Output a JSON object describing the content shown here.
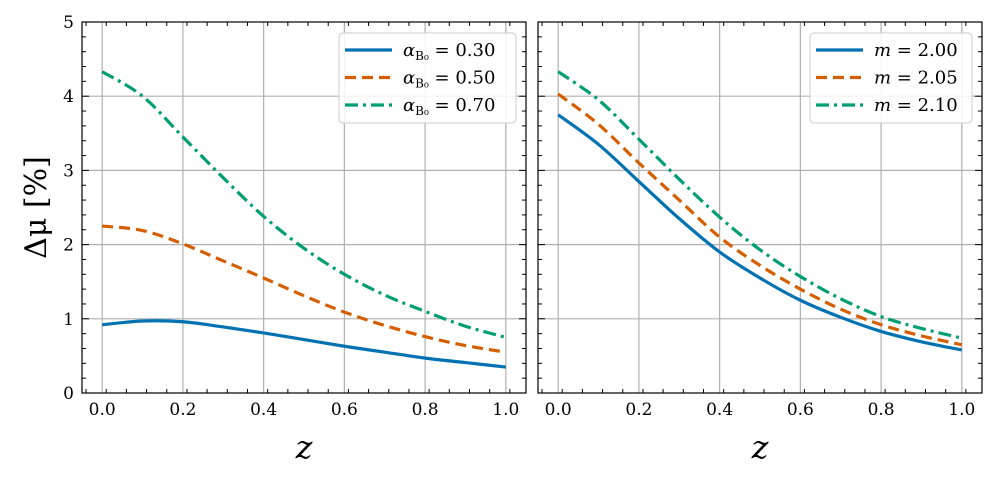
{
  "chart_data": [
    {
      "type": "line",
      "xlabel": "z",
      "ylabel": "Δμ [%]",
      "xlim": [
        -0.05,
        1.05
      ],
      "ylim": [
        0,
        5
      ],
      "xticks": [
        "0.0",
        "0.2",
        "0.4",
        "0.6",
        "0.8",
        "1.0"
      ],
      "yticks": [
        "0",
        "1",
        "2",
        "3",
        "4",
        "5"
      ],
      "grid": true,
      "legend": "top-right",
      "x": [
        0,
        0.1,
        0.2,
        0.3,
        0.4,
        0.5,
        0.6,
        0.7,
        0.8,
        0.9,
        1.0
      ],
      "series": [
        {
          "name": "α_B0 = 0.30",
          "label_var": "α",
          "label_sub": "B₀",
          "label_val": "= 0.30",
          "color": "#0072B2",
          "style": "solid",
          "values": [
            0.92,
            0.97,
            0.96,
            0.89,
            0.81,
            0.72,
            0.63,
            0.55,
            0.47,
            0.41,
            0.35
          ]
        },
        {
          "name": "α_B0 = 0.50",
          "label_var": "α",
          "label_sub": "B₀",
          "label_val": "= 0.50",
          "color": "#D55E00",
          "style": "dashed",
          "values": [
            2.25,
            2.19,
            2.01,
            1.78,
            1.55,
            1.31,
            1.09,
            0.91,
            0.76,
            0.64,
            0.55
          ]
        },
        {
          "name": "α_B0 = 0.70",
          "label_var": "α",
          "label_sub": "B₀",
          "label_val": "= 0.70",
          "color": "#009E73",
          "style": "dashdot",
          "values": [
            4.33,
            4.0,
            3.45,
            2.9,
            2.38,
            1.95,
            1.6,
            1.32,
            1.1,
            0.9,
            0.75
          ]
        }
      ]
    },
    {
      "type": "line",
      "xlabel": "z",
      "ylabel": "",
      "xlim": [
        -0.05,
        1.05
      ],
      "ylim": [
        0,
        5
      ],
      "xticks": [
        "0.0",
        "0.2",
        "0.4",
        "0.6",
        "0.8",
        "1.0"
      ],
      "yticks": [],
      "grid": true,
      "legend": "top-right",
      "x": [
        0,
        0.1,
        0.2,
        0.3,
        0.4,
        0.5,
        0.6,
        0.7,
        0.8,
        0.9,
        1.0
      ],
      "series": [
        {
          "name": "m = 2.00",
          "label_var": "m",
          "label_sub": "",
          "label_val": "= 2.00",
          "color": "#0072B2",
          "style": "solid",
          "values": [
            3.75,
            3.35,
            2.85,
            2.35,
            1.9,
            1.55,
            1.25,
            1.02,
            0.83,
            0.69,
            0.58
          ]
        },
        {
          "name": "m = 2.05",
          "label_var": "m",
          "label_sub": "",
          "label_val": "= 2.05",
          "color": "#D55E00",
          "style": "dashed",
          "values": [
            4.03,
            3.62,
            3.1,
            2.6,
            2.1,
            1.72,
            1.4,
            1.13,
            0.92,
            0.77,
            0.65
          ]
        },
        {
          "name": "m = 2.10",
          "label_var": "m",
          "label_sub": "",
          "label_val": "= 2.10",
          "color": "#009E73",
          "style": "dashdot",
          "values": [
            4.33,
            3.95,
            3.42,
            2.88,
            2.37,
            1.93,
            1.57,
            1.27,
            1.03,
            0.87,
            0.74
          ]
        }
      ]
    }
  ]
}
